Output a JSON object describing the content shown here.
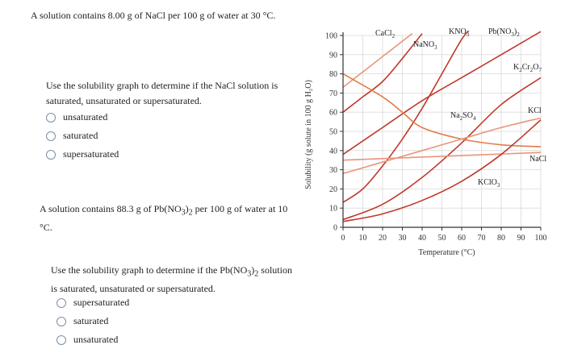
{
  "q1": {
    "heading": "A solution contains 8.00 g of NaCl per 100 g of water at 30 °C.",
    "prompt": "Use the solubility graph to determine if the NaCl solution is saturated, unsaturated or supersaturated.",
    "options": [
      "unsaturated",
      "saturated",
      "supersaturated"
    ]
  },
  "q2": {
    "heading_parts": [
      "A solution contains 88.3 g of Pb(NO",
      "3",
      ")",
      "2",
      " per 100 g of water at 10 °C."
    ],
    "prompt_parts": [
      "Use the solubility graph to determine if the Pb(NO",
      "3",
      ")",
      "2",
      " solution is saturated, unsaturated or supersaturated."
    ],
    "options": [
      "supersaturated",
      "saturated",
      "unsaturated"
    ]
  },
  "chart_data": {
    "type": "line",
    "xlabel": "Temperature (°C)",
    "ylabel": "Solubility (g solute in 100 g H₂O)",
    "xlim": [
      0,
      100
    ],
    "ylim": [
      0,
      100
    ],
    "x_ticks": [
      0,
      10,
      20,
      30,
      40,
      50,
      60,
      70,
      80,
      90,
      100
    ],
    "y_ticks": [
      0,
      10,
      20,
      30,
      40,
      50,
      60,
      70,
      80,
      90,
      100
    ],
    "series": [
      {
        "name": "CaCl2",
        "label_parts": [
          "CaCl",
          "2"
        ],
        "color": "#c0392b",
        "x": [
          0,
          10,
          20,
          30,
          40
        ],
        "y": [
          60,
          68,
          76,
          88,
          101
        ]
      },
      {
        "name": "NaNO3",
        "label_parts": [
          "NaNO",
          "3"
        ],
        "color": "#e8957a",
        "x": [
          0,
          10,
          20,
          30,
          35
        ],
        "y": [
          73,
          81,
          89,
          97,
          101
        ]
      },
      {
        "name": "KNO3",
        "label_parts": [
          "KNO",
          "3"
        ],
        "color": "#c0392b",
        "x": [
          0,
          10,
          20,
          30,
          40,
          50,
          60,
          65
        ],
        "y": [
          13,
          20,
          32,
          46,
          62,
          80,
          98,
          104
        ]
      },
      {
        "name": "Pb(NO3)2",
        "label_parts": [
          "Pb(NO",
          "3",
          ")",
          "2"
        ],
        "color": "#c0392b",
        "x": [
          0,
          20,
          40,
          60,
          80,
          100
        ],
        "y": [
          38,
          52,
          66,
          78,
          90,
          102
        ]
      },
      {
        "name": "K2Cr2O7",
        "label_parts": [
          "K",
          "2",
          "Cr",
          "2",
          "O",
          "7"
        ],
        "color": "#c0392b",
        "x": [
          0,
          20,
          40,
          60,
          80,
          100
        ],
        "y": [
          4,
          12,
          26,
          44,
          64,
          78
        ]
      },
      {
        "name": "Na2SO4",
        "label_parts": [
          "Na",
          "2",
          "SO",
          "4"
        ],
        "color": "#e07c4a",
        "x": [
          0,
          20,
          30,
          40,
          60,
          80,
          100
        ],
        "y": [
          80,
          68,
          60,
          52,
          46,
          43,
          42
        ]
      },
      {
        "name": "KCl",
        "label_parts": [
          "KCl"
        ],
        "color": "#e8957a",
        "x": [
          0,
          20,
          40,
          60,
          80,
          100
        ],
        "y": [
          28,
          34,
          40,
          46,
          52,
          57
        ]
      },
      {
        "name": "NaCl",
        "label_parts": [
          "NaCl"
        ],
        "color": "#e8957a",
        "x": [
          0,
          50,
          100
        ],
        "y": [
          35,
          37,
          39
        ]
      },
      {
        "name": "KClO3",
        "label_parts": [
          "KClO",
          "3"
        ],
        "color": "#c0392b",
        "x": [
          0,
          20,
          40,
          60,
          80,
          100
        ],
        "y": [
          3,
          7,
          14,
          24,
          38,
          56
        ]
      }
    ]
  }
}
